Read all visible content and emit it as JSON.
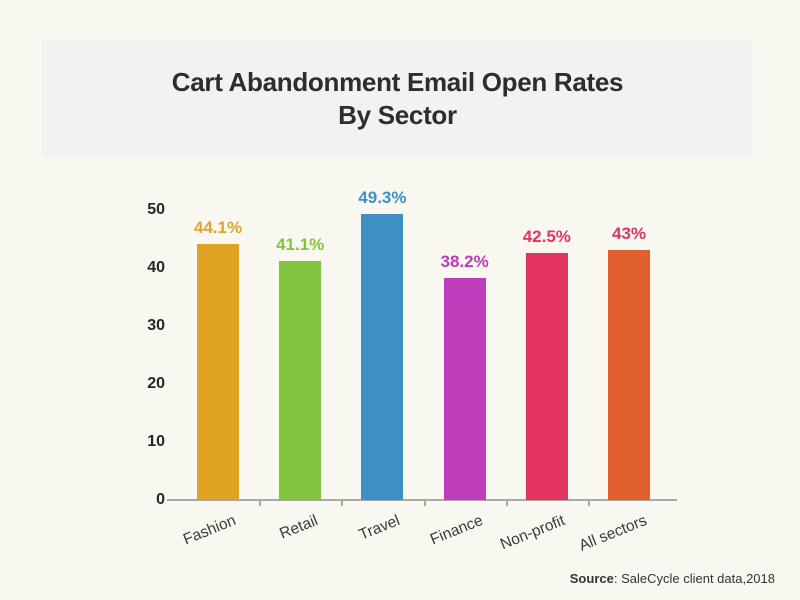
{
  "title": {
    "line1": "Cart Abandonment Email Open Rates",
    "line2": "By Sector"
  },
  "source": {
    "label": "Source",
    "rest": ": SaleCycle client data,2018"
  },
  "chart_data": {
    "type": "bar",
    "title": "Cart Abandonment Email Open Rates By Sector",
    "categories": [
      "Fashion",
      "Retail",
      "Travel",
      "Finance",
      "Non-profit",
      "All sectors"
    ],
    "values": [
      44.1,
      41.1,
      49.3,
      38.2,
      42.5,
      43
    ],
    "data_labels": [
      "44.1%",
      "41.1%",
      "49.3%",
      "38.2%",
      "42.5%",
      "43%"
    ],
    "bar_colors": [
      "#dfa321",
      "#82c33e",
      "#3e90c4",
      "#bf3cbb",
      "#e5335f",
      "#e1612e"
    ],
    "label_colors": [
      "#e2a52e",
      "#82c33e",
      "#3e92c5",
      "#c03bbc",
      "#e5335f",
      "#e5335f"
    ],
    "xlabel": "",
    "ylabel": "",
    "ylim": [
      0,
      50
    ],
    "yticks": [
      0,
      10,
      20,
      30,
      40,
      50
    ],
    "grid": false,
    "legend": false,
    "axis_color": "#a8a8a8",
    "background_color": "#f8f8f1",
    "title_panel_color": "#f2f2f0"
  }
}
